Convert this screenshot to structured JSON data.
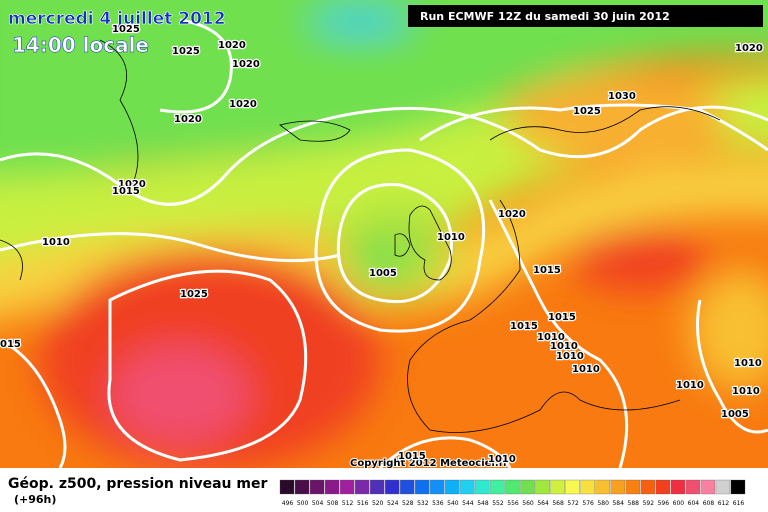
{
  "header": {
    "date": "mercredi 4 juillet 2012",
    "time": "14:00 locale",
    "run": "Run ECMWF 12Z du samedi 30 juin 2012"
  },
  "isobars": [
    "1025",
    "1025",
    "1020",
    "1020",
    "1020",
    "1020",
    "1020",
    "1015",
    "1010",
    "1025",
    "015",
    "1020",
    "1030",
    "1025",
    "1020",
    "1010",
    "1005",
    "1015",
    "1015",
    "1015",
    "1010",
    "1010",
    "1010",
    "1010",
    "1010",
    "1010",
    "1010",
    "1005",
    "1015",
    "1010"
  ],
  "copyright": "Copyright 2012 Meteociel.fr",
  "legend": {
    "title": "Géop. z500, pression niveau mer",
    "lead": "(+96h)",
    "scale": [
      {
        "label": "496",
        "color": "#2a0a2a"
      },
      {
        "label": "500",
        "color": "#4a0f4a"
      },
      {
        "label": "504",
        "color": "#6a146a"
      },
      {
        "label": "508",
        "color": "#8a1a8a"
      },
      {
        "label": "512",
        "color": "#a020a0"
      },
      {
        "label": "516",
        "color": "#7a2aa8"
      },
      {
        "label": "520",
        "color": "#5030b8"
      },
      {
        "label": "524",
        "color": "#3030d0"
      },
      {
        "label": "528",
        "color": "#2050e0"
      },
      {
        "label": "532",
        "color": "#1070f0"
      },
      {
        "label": "536",
        "color": "#1090f8"
      },
      {
        "label": "540",
        "color": "#10b0f8"
      },
      {
        "label": "544",
        "color": "#20d0f0"
      },
      {
        "label": "548",
        "color": "#30e8d0"
      },
      {
        "label": "552",
        "color": "#40f0a0"
      },
      {
        "label": "556",
        "color": "#50e870"
      },
      {
        "label": "560",
        "color": "#70e050"
      },
      {
        "label": "564",
        "color": "#a0e840"
      },
      {
        "label": "568",
        "color": "#d0f040"
      },
      {
        "label": "572",
        "color": "#f8f850"
      },
      {
        "label": "576",
        "color": "#f8e040"
      },
      {
        "label": "580",
        "color": "#f8c030"
      },
      {
        "label": "584",
        "color": "#f8a020"
      },
      {
        "label": "588",
        "color": "#f88010"
      },
      {
        "label": "592",
        "color": "#f86010"
      },
      {
        "label": "596",
        "color": "#f04020"
      },
      {
        "label": "600",
        "color": "#f03040"
      },
      {
        "label": "604",
        "color": "#f05070"
      },
      {
        "label": "608",
        "color": "#f880a0"
      },
      {
        "label": "612",
        "color": "#d0d0d0"
      },
      {
        "label": "616",
        "color": "#000000"
      }
    ]
  }
}
